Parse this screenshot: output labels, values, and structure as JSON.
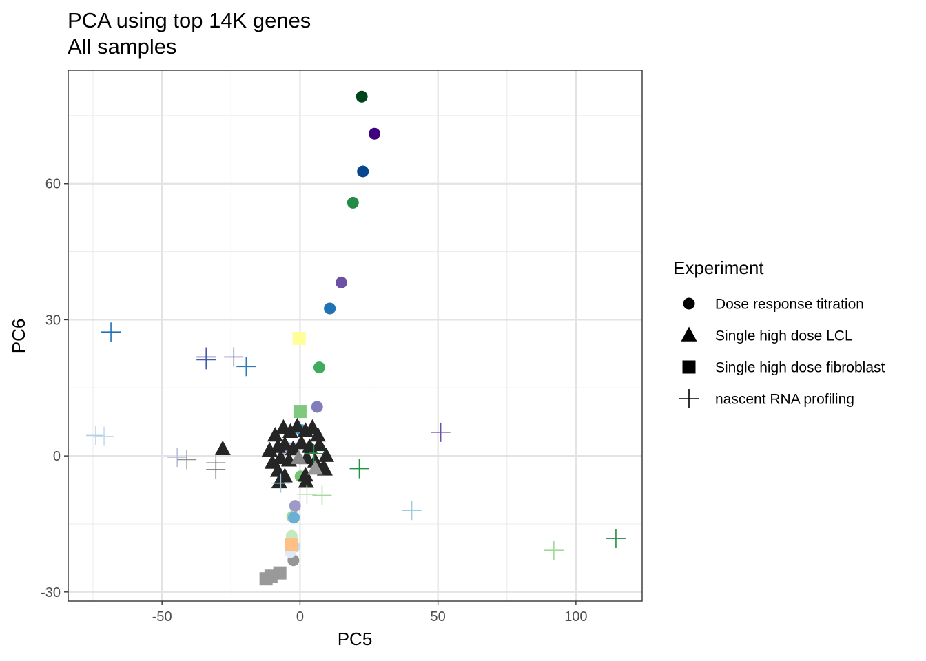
{
  "chart_data": {
    "type": "scatter",
    "title": "PCA using top 14K genes",
    "subtitle": "All samples",
    "xlabel": "PC5",
    "ylabel": "PC6",
    "xlim": [
      -84,
      124
    ],
    "ylim": [
      -32,
      85
    ],
    "x_ticks": [
      -50,
      0,
      50,
      100
    ],
    "x_tick_labels": [
      "-50",
      "0",
      "50",
      "100"
    ],
    "y_ticks": [
      -30,
      0,
      30,
      60
    ],
    "y_tick_labels": [
      "-30",
      "0",
      "30",
      "60"
    ],
    "grid": true,
    "legend": {
      "title": "Experiment",
      "placement": "right",
      "entries": [
        {
          "label": "Dose response titration",
          "shape": "circle"
        },
        {
          "label": "Single high dose LCL",
          "shape": "triangle"
        },
        {
          "label": "Single high dose fibroblast",
          "shape": "square"
        },
        {
          "label": "nascent RNA profiling",
          "shape": "plus"
        }
      ]
    },
    "points": [
      {
        "x": 22.4,
        "y": 79.2,
        "shape": "circle",
        "color": "#00441b"
      },
      {
        "x": 27.0,
        "y": 71.0,
        "shape": "circle",
        "color": "#3f007d"
      },
      {
        "x": 22.8,
        "y": 62.7,
        "shape": "circle",
        "color": "#08458f"
      },
      {
        "x": 19.2,
        "y": 55.8,
        "shape": "circle",
        "color": "#238b45"
      },
      {
        "x": 15.0,
        "y": 38.2,
        "shape": "circle",
        "color": "#6a51a3"
      },
      {
        "x": 10.8,
        "y": 32.5,
        "shape": "circle",
        "color": "#2171b5"
      },
      {
        "x": 7.0,
        "y": 19.5,
        "shape": "circle",
        "color": "#41ab5d"
      },
      {
        "x": 6.2,
        "y": 10.8,
        "shape": "circle",
        "color": "#807dba"
      },
      {
        "x": 0.5,
        "y": 5.7,
        "shape": "circle",
        "color": "#4292c6"
      },
      {
        "x": 0.2,
        "y": -4.5,
        "shape": "circle",
        "color": "#74c476"
      },
      {
        "x": -1.8,
        "y": -11.0,
        "shape": "circle",
        "color": "#9e9ac8"
      },
      {
        "x": -2.8,
        "y": -13.4,
        "shape": "circle",
        "color": "#a1d99b"
      },
      {
        "x": -2.2,
        "y": -13.6,
        "shape": "circle",
        "color": "#6baed6"
      },
      {
        "x": -3.0,
        "y": -17.6,
        "shape": "circle",
        "color": "#c7e9c0"
      },
      {
        "x": -2.0,
        "y": -20.0,
        "shape": "circle",
        "color": "#c6dbef"
      },
      {
        "x": -2.4,
        "y": -23.0,
        "shape": "circle",
        "color": "#969696"
      },
      {
        "x": -3.5,
        "y": -21.2,
        "shape": "circle",
        "color": "#deebf7"
      },
      {
        "x": -0.3,
        "y": 25.9,
        "shape": "square",
        "color": "#ffff99"
      },
      {
        "x": 0.0,
        "y": 9.8,
        "shape": "square",
        "color": "#7fc97f"
      },
      {
        "x": -4.0,
        "y": 1.5,
        "shape": "square",
        "color": "#beaed4"
      },
      {
        "x": -3.0,
        "y": -19.5,
        "shape": "square",
        "color": "#fdc086"
      },
      {
        "x": -12.3,
        "y": -27.1,
        "shape": "square",
        "color": "#999999"
      },
      {
        "x": -10.5,
        "y": -26.5,
        "shape": "square",
        "color": "#999999"
      },
      {
        "x": -7.3,
        "y": -25.8,
        "shape": "square",
        "color": "#999999"
      },
      {
        "x": -28.0,
        "y": 1.5,
        "shape": "triangle",
        "color": "#252525"
      },
      {
        "x": -9.0,
        "y": 4.5,
        "shape": "triangle",
        "color": "#252525"
      },
      {
        "x": -6.0,
        "y": 6.2,
        "shape": "triangle",
        "color": "#252525"
      },
      {
        "x": -3.5,
        "y": 5.3,
        "shape": "triangle",
        "color": "#252525"
      },
      {
        "x": -1.0,
        "y": 6.5,
        "shape": "triangle",
        "color": "#252525"
      },
      {
        "x": 2.0,
        "y": 5.5,
        "shape": "triangle",
        "color": "#252525"
      },
      {
        "x": 4.5,
        "y": 6.2,
        "shape": "triangle",
        "color": "#252525"
      },
      {
        "x": 6.5,
        "y": 4.5,
        "shape": "triangle",
        "color": "#252525"
      },
      {
        "x": -11.0,
        "y": 1.2,
        "shape": "triangle",
        "color": "#252525"
      },
      {
        "x": -8.0,
        "y": 2.0,
        "shape": "triangle",
        "color": "#252525"
      },
      {
        "x": -5.5,
        "y": 2.5,
        "shape": "triangle",
        "color": "#252525"
      },
      {
        "x": -2.5,
        "y": 1.5,
        "shape": "triangle",
        "color": "#252525"
      },
      {
        "x": 0.5,
        "y": 2.8,
        "shape": "triangle",
        "color": "#252525"
      },
      {
        "x": 3.5,
        "y": 2.0,
        "shape": "triangle",
        "color": "#252525"
      },
      {
        "x": 7.0,
        "y": 2.4,
        "shape": "triangle",
        "color": "#252525"
      },
      {
        "x": 9.5,
        "y": 0.0,
        "shape": "triangle",
        "color": "#252525"
      },
      {
        "x": -10.0,
        "y": -1.5,
        "shape": "triangle",
        "color": "#252525"
      },
      {
        "x": -7.0,
        "y": -0.5,
        "shape": "triangle",
        "color": "#252525"
      },
      {
        "x": -4.0,
        "y": -1.0,
        "shape": "triangle",
        "color": "#252525"
      },
      {
        "x": 2.5,
        "y": -0.5,
        "shape": "triangle",
        "color": "#252525"
      },
      {
        "x": 5.5,
        "y": -1.2,
        "shape": "triangle",
        "color": "#252525"
      },
      {
        "x": 8.5,
        "y": -2.5,
        "shape": "triangle",
        "color": "#252525"
      },
      {
        "x": -8.0,
        "y": -3.3,
        "shape": "triangle",
        "color": "#252525"
      },
      {
        "x": -5.5,
        "y": -4.5,
        "shape": "triangle",
        "color": "#252525"
      },
      {
        "x": 2.0,
        "y": -4.3,
        "shape": "triangle",
        "color": "#252525"
      },
      {
        "x": 9.0,
        "y": -3.0,
        "shape": "triangle",
        "color": "#252525"
      },
      {
        "x": -7.5,
        "y": -5.8,
        "shape": "triangle",
        "color": "#252525"
      },
      {
        "x": 2.2,
        "y": -5.7,
        "shape": "triangle",
        "color": "#252525"
      },
      {
        "x": -0.5,
        "y": -0.5,
        "shape": "triangle",
        "color": "#888888"
      },
      {
        "x": 5.5,
        "y": -2.8,
        "shape": "triangle",
        "color": "#999999"
      },
      {
        "x": -74.0,
        "y": 4.5,
        "shape": "plus",
        "color": "#b5cde3"
      },
      {
        "x": -71.0,
        "y": 4.3,
        "shape": "plus",
        "color": "#c6dbef"
      },
      {
        "x": -68.5,
        "y": 27.3,
        "shape": "plus",
        "color": "#2171b5"
      },
      {
        "x": -34.0,
        "y": 21.8,
        "shape": "plus",
        "color": "#6a51a3"
      },
      {
        "x": -34.0,
        "y": 21.2,
        "shape": "plus",
        "color": "#3f5ca8"
      },
      {
        "x": -24.0,
        "y": 21.8,
        "shape": "plus",
        "color": "#807dba"
      },
      {
        "x": -19.5,
        "y": 19.7,
        "shape": "plus",
        "color": "#2b7bba"
      },
      {
        "x": -44.5,
        "y": -0.3,
        "shape": "plus",
        "color": "#bcbddc"
      },
      {
        "x": -41.0,
        "y": -0.8,
        "shape": "plus",
        "color": "#8c8c8c"
      },
      {
        "x": -30.5,
        "y": -1.5,
        "shape": "plus",
        "color": "#9e9e9e"
      },
      {
        "x": -30.5,
        "y": -3.0,
        "shape": "plus",
        "color": "#7a7a7a"
      },
      {
        "x": -7.0,
        "y": -6.0,
        "shape": "plus",
        "color": "#9ecae1"
      },
      {
        "x": 5.0,
        "y": 0.5,
        "shape": "plus",
        "color": "#238b45"
      },
      {
        "x": 2.5,
        "y": -8.5,
        "shape": "plus",
        "color": "#c7e9c0"
      },
      {
        "x": 8.0,
        "y": -8.7,
        "shape": "plus",
        "color": "#a1d99b"
      },
      {
        "x": 21.5,
        "y": -2.8,
        "shape": "plus",
        "color": "#1a9641"
      },
      {
        "x": 51.0,
        "y": 5.2,
        "shape": "plus",
        "color": "#6a51a3"
      },
      {
        "x": 40.5,
        "y": -12.0,
        "shape": "plus",
        "color": "#9ecae1"
      },
      {
        "x": 92.0,
        "y": -20.8,
        "shape": "plus",
        "color": "#a1d99b"
      },
      {
        "x": 114.5,
        "y": -18.2,
        "shape": "plus",
        "color": "#238b45"
      }
    ]
  }
}
